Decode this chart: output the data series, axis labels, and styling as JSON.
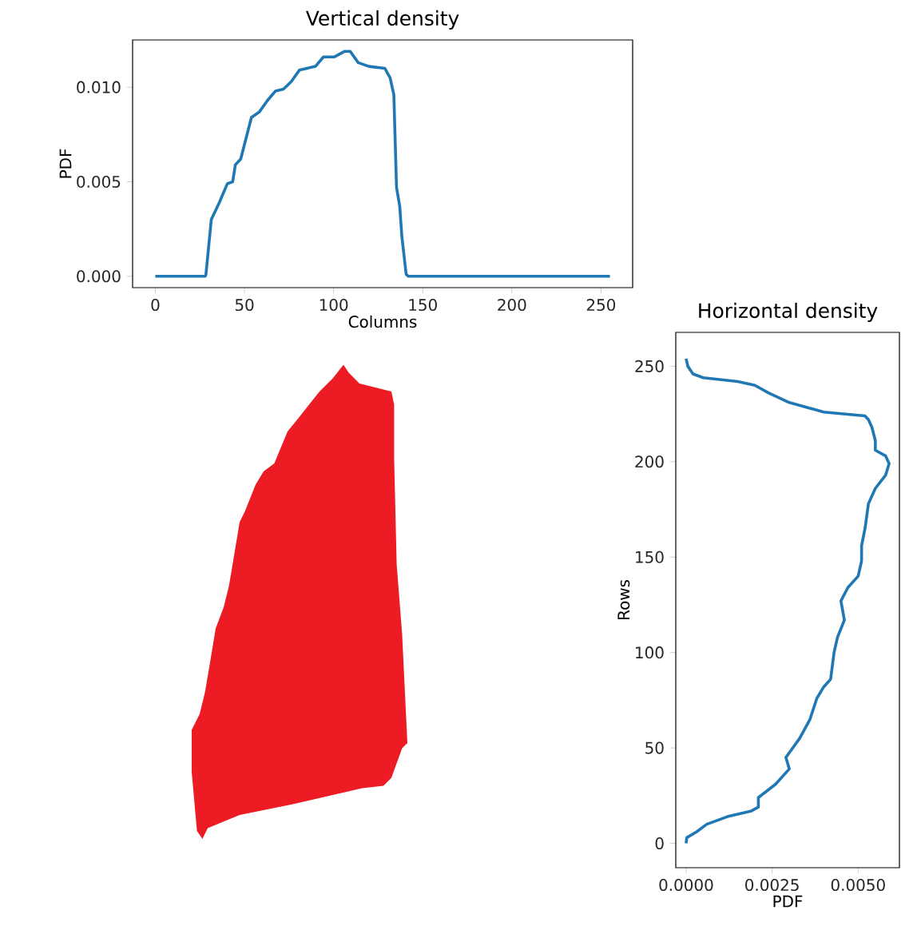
{
  "chart_data": [
    {
      "type": "line",
      "title": "Vertical density",
      "xlabel": "Columns",
      "ylabel": "PDF",
      "color": "#1f77b4",
      "x": [
        0,
        28,
        28.4,
        31.4,
        35.9,
        40.4,
        43.4,
        44.9,
        47.9,
        50.9,
        53.9,
        58.4,
        62.9,
        67.4,
        71.9,
        76.3,
        80.8,
        89.8,
        94.3,
        100.3,
        106.3,
        109.3,
        113.8,
        119.8,
        128.7,
        131.7,
        133.8,
        135.3,
        137.1,
        138.3,
        140.7,
        142,
        255
      ],
      "values": [
        0,
        0,
        0.0001,
        0.003,
        0.0039,
        0.0049,
        0.005,
        0.0059,
        0.0062,
        0.0073,
        0.0084,
        0.0087,
        0.0093,
        0.0098,
        0.0099,
        0.0103,
        0.0109,
        0.0111,
        0.0116,
        0.0116,
        0.0119,
        0.0119,
        0.0113,
        0.0111,
        0.011,
        0.0105,
        0.0096,
        0.0047,
        0.0037,
        0.0021,
        0.0001,
        0,
        0
      ],
      "xlim": [
        -12.75,
        267.75
      ],
      "ylim": [
        -0.0006,
        0.0125
      ],
      "xticks": [
        0,
        50,
        100,
        150,
        200,
        250
      ],
      "yticks": [
        {
          "value": 0,
          "label": "0.000"
        },
        {
          "value": 0.005,
          "label": "0.005"
        },
        {
          "value": 0.01,
          "label": "0.010"
        }
      ]
    },
    {
      "type": "line",
      "title": "Horizontal density",
      "xlabel": "PDF",
      "ylabel": "Rows",
      "color": "#1f77b4",
      "x": [
        0,
        2e-05,
        0.0003,
        0.0006,
        0.0012,
        0.0019,
        0.0021,
        0.0021,
        0.0026,
        0.003,
        0.0029,
        0.0033,
        0.0036,
        0.0038,
        0.004,
        0.0042,
        0.0043,
        0.0044,
        0.0046,
        0.0045,
        0.0047,
        0.005,
        0.0051,
        0.0051,
        0.0052,
        0.0053,
        0.0055,
        0.0058,
        0.0059,
        0.0058,
        0.0055,
        0.0055,
        0.0054,
        0.0053,
        0.0052,
        0.004,
        0.003,
        0.0024,
        0.002,
        0.0015,
        0.0005,
        0.0002,
        5e-05,
        0
      ],
      "values": [
        0,
        3,
        6,
        10,
        14,
        17,
        19,
        24,
        31,
        39,
        45,
        55,
        65,
        76,
        82,
        86,
        100,
        108,
        117,
        127,
        134,
        140,
        148,
        156,
        165,
        178,
        186,
        193,
        199,
        203,
        206,
        211,
        218,
        222,
        224,
        226,
        231,
        236,
        240,
        242,
        244,
        246,
        250,
        254
      ],
      "xlim": [
        -0.0003,
        0.0062
      ],
      "ylim": [
        -12.75,
        267.75
      ],
      "xticks": [
        {
          "value": 0,
          "label": "0.0000"
        },
        {
          "value": 0.0025,
          "label": "0.0025"
        },
        {
          "value": 0.005,
          "label": "0.0050"
        }
      ],
      "yticks": [
        0,
        50,
        100,
        150,
        200,
        250
      ]
    }
  ]
}
